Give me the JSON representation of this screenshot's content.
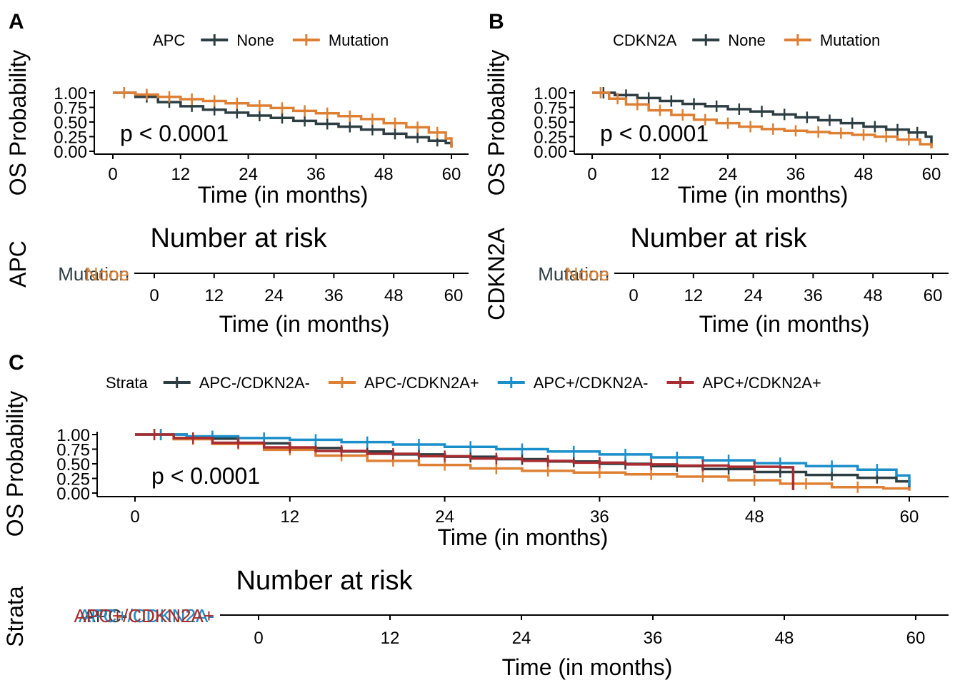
{
  "colors": {
    "none": "#2d3e43",
    "mutation": "#dd8034",
    "apc_neg_cdkn2a_neg": "#2d3e43",
    "apc_neg_cdkn2a_pos": "#dd8034",
    "apc_pos_cdkn2a_neg": "#1b8fca",
    "apc_pos_cdkn2a_pos": "#a92d30",
    "axis": "#000000"
  },
  "panels": {
    "A": {
      "letter": "A"
    },
    "B": {
      "letter": "B"
    },
    "C": {
      "letter": "C"
    }
  },
  "chart_data": [
    {
      "id": "A",
      "type": "line",
      "subtype": "kaplan-meier",
      "legend_title": "APC",
      "legend_position": "top",
      "xlabel": "Time (in months)",
      "ylabel": "OS Probability",
      "xlim": [
        0,
        60
      ],
      "ylim": [
        0,
        1
      ],
      "xticks": [
        "0",
        "12",
        "24",
        "36",
        "48",
        "60"
      ],
      "yticks": [
        "0.00",
        "0.25",
        "0.50",
        "0.75",
        "1.00"
      ],
      "pvalue": "p < 0.0001",
      "series": [
        {
          "name": "None",
          "color_key": "none",
          "x": [
            0,
            4,
            8,
            12,
            16,
            20,
            24,
            28,
            32,
            36,
            40,
            44,
            48,
            52,
            56,
            59,
            60
          ],
          "y": [
            1.0,
            0.93,
            0.84,
            0.77,
            0.71,
            0.66,
            0.61,
            0.57,
            0.52,
            0.47,
            0.42,
            0.37,
            0.3,
            0.24,
            0.18,
            0.14,
            0.08
          ]
        },
        {
          "name": "Mutation",
          "color_key": "mutation",
          "x": [
            0,
            4,
            8,
            12,
            16,
            20,
            24,
            28,
            32,
            36,
            40,
            44,
            48,
            52,
            56,
            59,
            60
          ],
          "y": [
            1.0,
            0.97,
            0.93,
            0.89,
            0.86,
            0.82,
            0.78,
            0.74,
            0.69,
            0.65,
            0.6,
            0.55,
            0.48,
            0.41,
            0.32,
            0.22,
            0.06
          ]
        }
      ],
      "risk_table": {
        "title": "Number at risk",
        "ylabel": "APC",
        "row_labels": [
          "Mutation",
          "None"
        ],
        "xlabel": "Time (in months)",
        "xticks": [
          "0",
          "12",
          "24",
          "36",
          "48",
          "60"
        ]
      }
    },
    {
      "id": "B",
      "type": "line",
      "subtype": "kaplan-meier",
      "legend_title": "CDKN2A",
      "legend_position": "top",
      "xlabel": "Time (in months)",
      "ylabel": "OS Probability",
      "xlim": [
        0,
        60
      ],
      "ylim": [
        0,
        1
      ],
      "xticks": [
        "0",
        "12",
        "24",
        "36",
        "48",
        "60"
      ],
      "yticks": [
        "0.00",
        "0.25",
        "0.50",
        "0.75",
        "1.00"
      ],
      "pvalue": "p < 0.0001",
      "series": [
        {
          "name": "None",
          "color_key": "none",
          "x": [
            0,
            4,
            8,
            12,
            16,
            20,
            24,
            28,
            32,
            36,
            40,
            44,
            48,
            52,
            56,
            59,
            60
          ],
          "y": [
            1.0,
            0.96,
            0.91,
            0.86,
            0.81,
            0.77,
            0.72,
            0.68,
            0.63,
            0.58,
            0.53,
            0.48,
            0.42,
            0.37,
            0.32,
            0.25,
            0.1
          ]
        },
        {
          "name": "Mutation",
          "color_key": "mutation",
          "x": [
            0,
            3,
            6,
            10,
            14,
            18,
            22,
            26,
            30,
            34,
            38,
            42,
            46,
            50,
            54,
            58,
            60
          ],
          "y": [
            1.0,
            0.9,
            0.8,
            0.7,
            0.62,
            0.54,
            0.48,
            0.42,
            0.38,
            0.35,
            0.33,
            0.31,
            0.28,
            0.25,
            0.2,
            0.12,
            0.05
          ]
        }
      ],
      "risk_table": {
        "title": "Number at risk",
        "ylabel": "CDKN2A",
        "row_labels": [
          "Mutation",
          "None"
        ],
        "xlabel": "Time (in months)",
        "xticks": [
          "0",
          "12",
          "24",
          "36",
          "48",
          "60"
        ]
      }
    },
    {
      "id": "C",
      "type": "line",
      "subtype": "kaplan-meier",
      "legend_title": "Strata",
      "legend_position": "top",
      "xlabel": "Time (in months)",
      "ylabel": "OS Probability",
      "xlim": [
        0,
        60
      ],
      "ylim": [
        0,
        1
      ],
      "xticks": [
        "0",
        "12",
        "24",
        "36",
        "48",
        "60"
      ],
      "yticks": [
        "0.00",
        "0.25",
        "0.50",
        "0.75",
        "1.00"
      ],
      "pvalue": "p < 0.0001",
      "series": [
        {
          "name": "APC-/CDKN2A-",
          "color_key": "apc_neg_cdkn2a_neg",
          "x": [
            0,
            4,
            8,
            12,
            16,
            20,
            24,
            28,
            32,
            36,
            40,
            44,
            48,
            52,
            56,
            59,
            60
          ],
          "y": [
            1.0,
            0.93,
            0.85,
            0.77,
            0.71,
            0.66,
            0.62,
            0.58,
            0.54,
            0.5,
            0.46,
            0.41,
            0.36,
            0.31,
            0.26,
            0.2,
            0.1
          ]
        },
        {
          "name": "APC-/CDKN2A+",
          "color_key": "apc_neg_cdkn2a_pos",
          "x": [
            0,
            3,
            6,
            10,
            14,
            18,
            22,
            26,
            30,
            34,
            38,
            42,
            46,
            50,
            54,
            58,
            60
          ],
          "y": [
            1.0,
            0.92,
            0.84,
            0.74,
            0.64,
            0.55,
            0.48,
            0.42,
            0.38,
            0.35,
            0.32,
            0.28,
            0.22,
            0.16,
            0.1,
            0.08,
            0.04
          ]
        },
        {
          "name": "APC+/CDKN2A-",
          "color_key": "apc_pos_cdkn2a_neg",
          "x": [
            0,
            4,
            8,
            12,
            16,
            20,
            24,
            28,
            32,
            36,
            40,
            44,
            48,
            52,
            56,
            59,
            60
          ],
          "y": [
            1.0,
            0.97,
            0.94,
            0.91,
            0.87,
            0.83,
            0.79,
            0.75,
            0.71,
            0.66,
            0.61,
            0.56,
            0.51,
            0.46,
            0.4,
            0.3,
            0.12
          ]
        },
        {
          "name": "APC+/CDKN2A+",
          "color_key": "apc_pos_cdkn2a_pos",
          "x": [
            0,
            3,
            6,
            10,
            14,
            18,
            22,
            26,
            30,
            34,
            38,
            42,
            46,
            50,
            51
          ],
          "y": [
            1.0,
            0.94,
            0.86,
            0.78,
            0.72,
            0.67,
            0.63,
            0.59,
            0.55,
            0.52,
            0.49,
            0.47,
            0.45,
            0.44,
            0.05
          ]
        }
      ],
      "risk_table": {
        "title": "Number at risk",
        "ylabel": "Strata",
        "row_labels": [
          "APC-/CDKN2A-",
          "APC-/CDKN2A+",
          "APC+/CDKN2A-",
          "APC+/CDKN2A+"
        ],
        "xlabel": "Time (in months)",
        "xticks": [
          "0",
          "12",
          "24",
          "36",
          "48",
          "60"
        ]
      }
    }
  ]
}
